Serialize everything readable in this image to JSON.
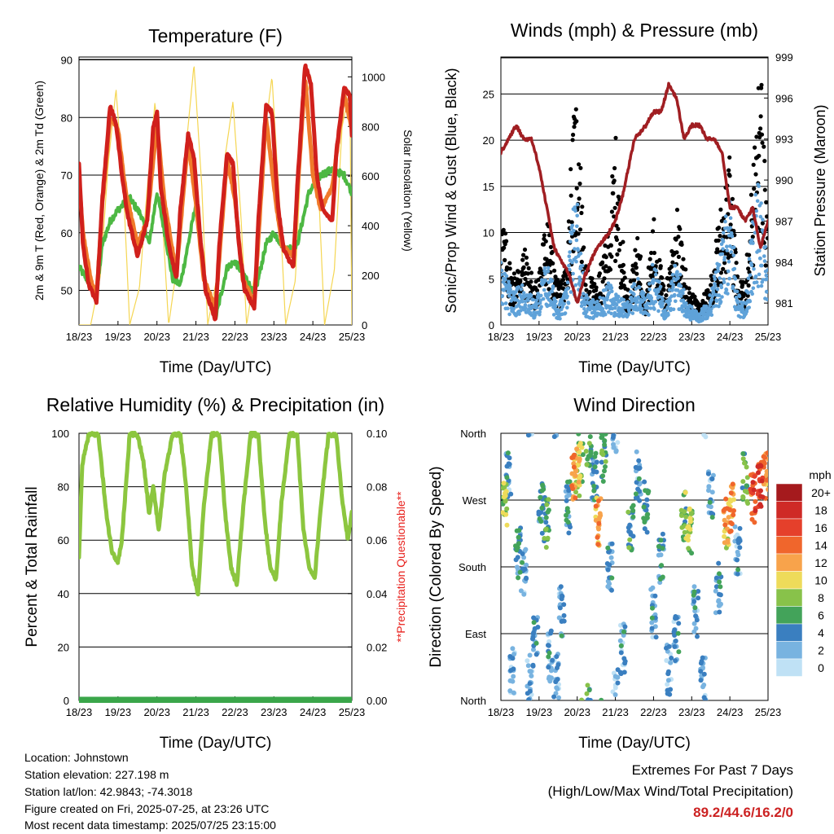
{
  "panels": {
    "temperature": {
      "title": "Temperature (F)",
      "xlabel": "Time (Day/UTC)",
      "ylabel_left": "2m & 9m T (Red, Orange) & 2m Td (Green)",
      "ylabel_right": "Solar Insolation (Yellow)"
    },
    "winds": {
      "title": "Winds (mph) & Pressure (mb)",
      "xlabel": "Time (Day/UTC)",
      "ylabel_left": "Sonic/Prop Wind & Gust (Blue, Black)",
      "ylabel_right": "Station Pressure (Maroon)"
    },
    "humidity": {
      "title": "Relative Humidity (%) & Precipitation (in)",
      "xlabel": "Time (Day/UTC)",
      "ylabel_left": "Percent & Total Rainfall",
      "ylabel_right": "**Precipitation Questionable**"
    },
    "direction": {
      "title": "Wind Direction",
      "xlabel": "Time (Day/UTC)",
      "ylabel_left": "Direction (Colored By Speed)",
      "colorbar_title": "mph"
    }
  },
  "station": {
    "location": "Location: Johnstown",
    "elevation": "Station elevation: 227.198 m",
    "latlon": "Station lat/lon: 42.9843; -74.3018",
    "created": "Figure created on Fri, 2025-07-25, at 23:26 UTC",
    "latest": "Most recent data timestamp: 2025/07/25 23:15:00"
  },
  "extremes": {
    "title": "Extremes For Past 7 Days",
    "subtitle": "(High/Low/Max Wind/Total Precipitation)",
    "values": "89.2/44.6/16.2/0",
    "value_color": "#cc2222"
  },
  "colors": {
    "temp_2m": "#d0201c",
    "temp_9m": "#f07a2a",
    "dewpoint": "#4db843",
    "solar": "#f5d653",
    "wind": "#5fa2d9",
    "gust": "#000000",
    "pressure": "#a01e22",
    "humidity": "#8cc63f",
    "precip": "#3aa64a",
    "questionable": "#e8201c"
  },
  "chart_data": [
    {
      "id": "temperature",
      "type": "line",
      "title": "Temperature (F)",
      "xlabel": "Time (Day/UTC)",
      "x_ticks": [
        "18/23",
        "19/23",
        "20/23",
        "21/23",
        "22/23",
        "23/23",
        "24/23",
        "25/23"
      ],
      "xlim": [
        0,
        7
      ],
      "ylim": [
        44,
        90.5
      ],
      "y_ticks": [
        50,
        60,
        70,
        80,
        90
      ],
      "y2lim": [
        0,
        1080
      ],
      "y2_ticks": [
        0,
        200,
        400,
        600,
        800,
        1000
      ],
      "grid": true,
      "series": [
        {
          "name": "2m T",
          "axis": "left",
          "color": "#d0201c",
          "x": [
            0,
            0.1,
            0.25,
            0.45,
            0.6,
            0.8,
            0.95,
            1.1,
            1.25,
            1.5,
            1.75,
            1.9,
            2.0,
            2.1,
            2.3,
            2.5,
            2.6,
            2.8,
            2.95,
            3.1,
            3.25,
            3.5,
            3.6,
            3.8,
            3.95,
            4.1,
            4.25,
            4.5,
            4.6,
            4.8,
            4.95,
            5.1,
            5.25,
            5.5,
            5.6,
            5.8,
            5.95,
            6.1,
            6.25,
            6.5,
            6.6,
            6.8,
            6.95,
            7.0
          ],
          "y": [
            72,
            58,
            51,
            48,
            66,
            82,
            79,
            70,
            63,
            56,
            62,
            78,
            81,
            68,
            58,
            52,
            64,
            77,
            73,
            60,
            50,
            45,
            58,
            74,
            72,
            58,
            50,
            47,
            62,
            82,
            81,
            65,
            57,
            54,
            68,
            89,
            86,
            70,
            64,
            62,
            74,
            85,
            84,
            77
          ]
        },
        {
          "name": "9m T",
          "axis": "left",
          "color": "#f07a2a",
          "x": [
            0,
            0.1,
            0.3,
            0.45,
            0.6,
            0.8,
            1.0,
            1.2,
            1.5,
            1.75,
            2.0,
            2.2,
            2.5,
            2.8,
            3.0,
            3.2,
            3.5,
            3.8,
            4.0,
            4.2,
            4.5,
            4.8,
            5.0,
            5.2,
            5.5,
            5.8,
            6.0,
            6.2,
            6.5,
            6.8,
            7.0
          ],
          "y": [
            70,
            60,
            52,
            49,
            65,
            80,
            78,
            67,
            58,
            62,
            79,
            65,
            53,
            76,
            65,
            52,
            47,
            73,
            66,
            52,
            48,
            80,
            68,
            58,
            56,
            87,
            70,
            64,
            68,
            84,
            78
          ]
        },
        {
          "name": "2m Td",
          "axis": "left",
          "color": "#4db843",
          "x": [
            0,
            0.2,
            0.45,
            0.6,
            0.8,
            1.0,
            1.3,
            1.6,
            1.8,
            2.0,
            2.2,
            2.4,
            2.6,
            2.8,
            3.0,
            3.2,
            3.5,
            3.8,
            4.0,
            4.3,
            4.5,
            4.8,
            5.0,
            5.3,
            5.6,
            5.9,
            6.2,
            6.5,
            6.8,
            7.0
          ],
          "y": [
            54,
            52,
            49,
            58,
            62,
            64,
            66,
            63,
            58,
            67,
            60,
            52,
            51,
            58,
            65,
            52,
            45,
            54,
            55,
            52,
            49,
            58,
            60,
            57,
            58,
            67,
            70,
            71,
            70,
            67
          ]
        },
        {
          "name": "Solar Insolation",
          "axis": "right",
          "color": "#f5d653",
          "x": [
            0,
            0.3,
            0.55,
            0.75,
            0.95,
            1.15,
            1.3,
            1.55,
            1.75,
            1.95,
            2.15,
            2.3,
            2.55,
            2.75,
            2.95,
            3.15,
            3.3,
            3.55,
            3.75,
            3.95,
            4.15,
            4.3,
            4.55,
            4.75,
            4.95,
            5.15,
            5.3,
            5.55,
            5.75,
            5.95,
            6.15,
            6.3,
            6.55,
            6.75,
            6.95,
            7.0
          ],
          "y": [
            0,
            0,
            200,
            650,
            950,
            520,
            0,
            150,
            550,
            900,
            400,
            0,
            280,
            720,
            1050,
            560,
            0,
            200,
            680,
            900,
            450,
            0,
            250,
            750,
            1000,
            480,
            0,
            180,
            850,
            1000,
            530,
            0,
            220,
            800,
            950,
            0
          ]
        }
      ]
    },
    {
      "id": "winds",
      "type": "scatter",
      "title": "Winds (mph) & Pressure (mb)",
      "xlabel": "Time (Day/UTC)",
      "x_ticks": [
        "18/23",
        "19/23",
        "20/23",
        "21/23",
        "22/23",
        "23/23",
        "24/23",
        "25/23"
      ],
      "xlim": [
        0,
        7
      ],
      "ylim": [
        0,
        29
      ],
      "y_ticks": [
        0,
        5,
        10,
        15,
        20,
        25
      ],
      "y2lim": [
        979.4,
        999
      ],
      "y2_ticks": [
        981,
        984,
        987,
        990,
        993,
        996,
        999
      ],
      "grid": true,
      "series": [
        {
          "name": "Sonic/Prop Wind",
          "axis": "left",
          "color": "#5fa2d9",
          "x": [
            0,
            0.3,
            0.6,
            0.9,
            1.2,
            1.5,
            1.7,
            1.85,
            2.0,
            2.2,
            2.5,
            2.8,
            3.0,
            3.3,
            3.6,
            3.8,
            4.0,
            4.3,
            4.6,
            4.9,
            5.2,
            5.5,
            5.8,
            6.0,
            6.2,
            6.4,
            6.6,
            6.8,
            7.0
          ],
          "y": [
            6,
            3,
            4,
            2,
            6,
            2,
            3,
            10,
            12,
            3,
            2,
            4,
            3,
            2,
            5,
            2,
            6,
            2,
            6,
            2,
            1,
            3,
            8,
            12,
            3,
            2,
            10,
            15,
            5
          ]
        },
        {
          "name": "Gust",
          "axis": "left",
          "color": "#000000",
          "x": [
            0,
            0.3,
            0.6,
            0.9,
            1.2,
            1.5,
            1.7,
            1.85,
            2.0,
            2.2,
            2.5,
            2.8,
            3.0,
            3.3,
            3.6,
            3.8,
            4.0,
            4.3,
            4.6,
            4.9,
            5.2,
            5.5,
            5.8,
            6.0,
            6.2,
            6.4,
            6.6,
            6.8,
            7.0
          ],
          "y": [
            12,
            5,
            8,
            4,
            11,
            4,
            6,
            18,
            25,
            6,
            4,
            9,
            19,
            3,
            9,
            3,
            11,
            3,
            12,
            4,
            2,
            5,
            13,
            17,
            5,
            4,
            16,
            27,
            8
          ]
        },
        {
          "name": "Station Pressure",
          "axis": "right",
          "color": "#a01e22",
          "x": [
            0,
            0.2,
            0.4,
            0.6,
            0.8,
            1.0,
            1.2,
            1.4,
            1.6,
            1.8,
            2.0,
            2.2,
            2.5,
            2.8,
            3.0,
            3.2,
            3.5,
            3.8,
            4.0,
            4.2,
            4.4,
            4.6,
            4.8,
            5.0,
            5.2,
            5.4,
            5.6,
            5.8,
            6.0,
            6.2,
            6.4,
            6.6,
            6.8,
            7.0
          ],
          "y": [
            992,
            993,
            994,
            993,
            993,
            991,
            988,
            985,
            984,
            983,
            981,
            983,
            985,
            986,
            987,
            989,
            993,
            994,
            995,
            995,
            997,
            996,
            993,
            994,
            994,
            993,
            993,
            992,
            988,
            988,
            987,
            988,
            985,
            987
          ]
        }
      ]
    },
    {
      "id": "humidity",
      "type": "line",
      "title": "Relative Humidity (%) & Precipitation (in)",
      "xlabel": "Time (Day/UTC)",
      "x_ticks": [
        "18/23",
        "19/23",
        "20/23",
        "21/23",
        "22/23",
        "23/23",
        "24/23",
        "25/23"
      ],
      "xlim": [
        0,
        7
      ],
      "ylim": [
        0,
        100
      ],
      "y_ticks": [
        0,
        20,
        40,
        60,
        80,
        100
      ],
      "y2lim": [
        0,
        0.1
      ],
      "y2_ticks": [
        "0.00",
        "0.02",
        "0.04",
        "0.06",
        "0.08",
        "0.10"
      ],
      "grid": true,
      "series": [
        {
          "name": "Relative Humidity",
          "axis": "left",
          "color": "#8cc63f",
          "x": [
            0,
            0.08,
            0.25,
            0.5,
            0.7,
            0.85,
            1.0,
            1.1,
            1.3,
            1.5,
            1.65,
            1.8,
            1.9,
            2.05,
            2.2,
            2.4,
            2.6,
            2.75,
            2.9,
            3.05,
            3.2,
            3.4,
            3.6,
            3.75,
            3.9,
            4.05,
            4.2,
            4.4,
            4.6,
            4.75,
            4.9,
            5.05,
            5.2,
            5.4,
            5.6,
            5.75,
            5.9,
            6.05,
            6.2,
            6.4,
            6.6,
            6.75,
            6.9,
            7.0
          ],
          "y": [
            53,
            88,
            100,
            100,
            70,
            55,
            52,
            60,
            100,
            100,
            90,
            70,
            80,
            64,
            85,
            100,
            100,
            80,
            50,
            40,
            72,
            100,
            100,
            70,
            50,
            43,
            70,
            100,
            100,
            70,
            50,
            45,
            75,
            100,
            100,
            65,
            50,
            46,
            72,
            100,
            100,
            75,
            60,
            70
          ]
        },
        {
          "name": "Total Rainfall",
          "axis": "right",
          "color": "#3aa64a",
          "x": [
            0,
            7
          ],
          "y": [
            0,
            0
          ]
        }
      ]
    },
    {
      "id": "direction",
      "type": "scatter",
      "title": "Wind Direction",
      "xlabel": "Time (Day/UTC)",
      "x_ticks": [
        "18/23",
        "19/23",
        "20/23",
        "21/23",
        "22/23",
        "23/23",
        "24/23",
        "25/23"
      ],
      "xlim": [
        0,
        7
      ],
      "ylim": [
        0,
        360
      ],
      "y_ticks": [
        "North",
        "East",
        "South",
        "West",
        "North"
      ],
      "grid": true,
      "colorbar": {
        "title": "mph",
        "labels": [
          "20+",
          "18",
          "16",
          "14",
          "12",
          "10",
          "8",
          "6",
          "4",
          "2",
          "0"
        ],
        "colors": [
          "#a51a1d",
          "#cf2a26",
          "#e5402b",
          "#f0662c",
          "#f8a34b",
          "#eedb5a",
          "#88c24a",
          "#43a35a",
          "#3a7fc0",
          "#78b3e0",
          "#bfe1f5"
        ]
      },
      "series": [
        {
          "name": "direction",
          "x": [
            0.1,
            0.2,
            0.3,
            0.45,
            0.6,
            0.75,
            0.9,
            1.05,
            1.2,
            1.3,
            1.45,
            1.6,
            1.75,
            1.9,
            2.0,
            2.1,
            2.3,
            2.45,
            2.55,
            2.7,
            2.85,
            3.0,
            3.2,
            3.4,
            3.6,
            3.8,
            4.0,
            4.2,
            4.4,
            4.6,
            4.8,
            4.95,
            5.1,
            5.3,
            5.5,
            5.7,
            5.9,
            6.05,
            6.2,
            6.4,
            6.6,
            6.8,
            6.95
          ],
          "y": [
            270,
            300,
            40,
            200,
            170,
            30,
            80,
            260,
            240,
            60,
            30,
            120,
            260,
            300,
            310,
            330,
            350,
            300,
            240,
            330,
            180,
            10,
            70,
            230,
            300,
            260,
            120,
            190,
            40,
            80,
            250,
            230,
            120,
            30,
            280,
            150,
            240,
            260,
            200,
            300,
            270,
            290,
            300
          ],
          "speed": [
            8,
            3,
            2,
            4,
            3,
            2,
            3,
            4,
            6,
            3,
            2,
            3,
            4,
            12,
            10,
            8,
            6,
            4,
            12,
            6,
            3,
            2,
            3,
            5,
            3,
            4,
            3,
            4,
            2,
            3,
            7,
            8,
            3,
            2,
            3,
            3,
            11,
            12,
            3,
            6,
            15,
            16,
            12
          ]
        }
      ]
    }
  ]
}
